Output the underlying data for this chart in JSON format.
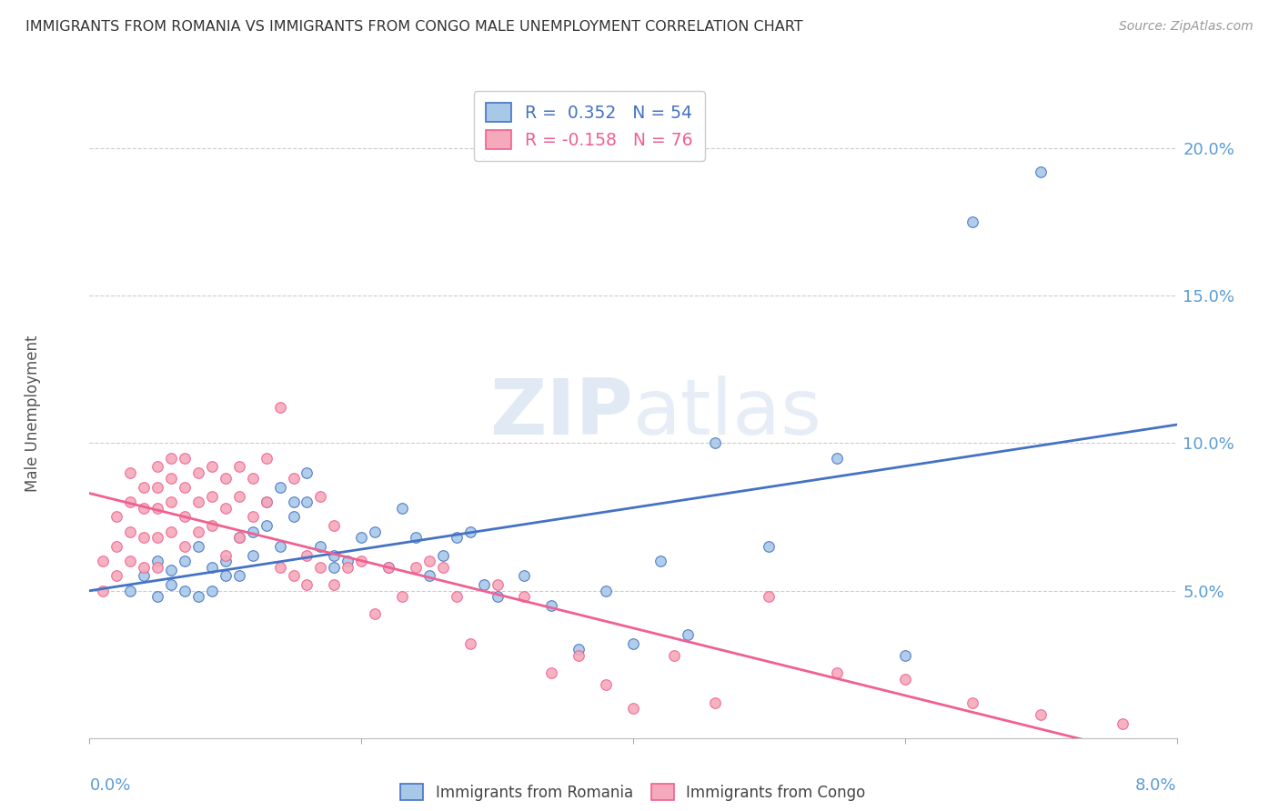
{
  "title": "IMMIGRANTS FROM ROMANIA VS IMMIGRANTS FROM CONGO MALE UNEMPLOYMENT CORRELATION CHART",
  "source": "Source: ZipAtlas.com",
  "ylabel": "Male Unemployment",
  "right_yticks": [
    "20.0%",
    "15.0%",
    "10.0%",
    "5.0%"
  ],
  "right_ytick_vals": [
    0.2,
    0.15,
    0.1,
    0.05
  ],
  "legend_romania": "R =  0.352   N = 54",
  "legend_congo": "R = -0.158   N = 76",
  "legend_label_romania": "Immigrants from Romania",
  "legend_label_congo": "Immigrants from Congo",
  "color_romania": "#A8C8E8",
  "color_congo": "#F4AABB",
  "color_romania_line": "#4472C4",
  "color_congo_line": "#F06090",
  "xlim": [
    0.0,
    0.08
  ],
  "ylim": [
    0.0,
    0.22
  ],
  "romania_scatter_x": [
    0.003,
    0.004,
    0.005,
    0.005,
    0.006,
    0.006,
    0.007,
    0.007,
    0.008,
    0.008,
    0.009,
    0.009,
    0.01,
    0.01,
    0.011,
    0.011,
    0.012,
    0.012,
    0.013,
    0.013,
    0.014,
    0.014,
    0.015,
    0.015,
    0.016,
    0.016,
    0.017,
    0.018,
    0.018,
    0.019,
    0.02,
    0.021,
    0.022,
    0.023,
    0.024,
    0.025,
    0.026,
    0.027,
    0.028,
    0.029,
    0.03,
    0.032,
    0.034,
    0.036,
    0.038,
    0.04,
    0.042,
    0.044,
    0.046,
    0.05,
    0.055,
    0.06,
    0.065,
    0.07
  ],
  "romania_scatter_y": [
    0.05,
    0.055,
    0.06,
    0.048,
    0.057,
    0.052,
    0.06,
    0.05,
    0.065,
    0.048,
    0.058,
    0.05,
    0.055,
    0.06,
    0.068,
    0.055,
    0.07,
    0.062,
    0.08,
    0.072,
    0.085,
    0.065,
    0.08,
    0.075,
    0.09,
    0.08,
    0.065,
    0.062,
    0.058,
    0.06,
    0.068,
    0.07,
    0.058,
    0.078,
    0.068,
    0.055,
    0.062,
    0.068,
    0.07,
    0.052,
    0.048,
    0.055,
    0.045,
    0.03,
    0.05,
    0.032,
    0.06,
    0.035,
    0.1,
    0.065,
    0.095,
    0.028,
    0.175,
    0.192
  ],
  "congo_scatter_x": [
    0.001,
    0.001,
    0.002,
    0.002,
    0.002,
    0.003,
    0.003,
    0.003,
    0.003,
    0.004,
    0.004,
    0.004,
    0.004,
    0.005,
    0.005,
    0.005,
    0.005,
    0.005,
    0.006,
    0.006,
    0.006,
    0.006,
    0.007,
    0.007,
    0.007,
    0.007,
    0.008,
    0.008,
    0.008,
    0.009,
    0.009,
    0.009,
    0.01,
    0.01,
    0.01,
    0.011,
    0.011,
    0.011,
    0.012,
    0.012,
    0.013,
    0.013,
    0.014,
    0.014,
    0.015,
    0.015,
    0.016,
    0.016,
    0.017,
    0.017,
    0.018,
    0.018,
    0.019,
    0.02,
    0.021,
    0.022,
    0.023,
    0.024,
    0.025,
    0.026,
    0.027,
    0.028,
    0.03,
    0.032,
    0.034,
    0.036,
    0.038,
    0.04,
    0.043,
    0.046,
    0.05,
    0.055,
    0.06,
    0.065,
    0.07,
    0.076
  ],
  "congo_scatter_y": [
    0.06,
    0.05,
    0.075,
    0.065,
    0.055,
    0.09,
    0.08,
    0.07,
    0.06,
    0.085,
    0.078,
    0.068,
    0.058,
    0.092,
    0.085,
    0.078,
    0.068,
    0.058,
    0.095,
    0.088,
    0.08,
    0.07,
    0.095,
    0.085,
    0.075,
    0.065,
    0.09,
    0.08,
    0.07,
    0.092,
    0.082,
    0.072,
    0.088,
    0.078,
    0.062,
    0.092,
    0.082,
    0.068,
    0.088,
    0.075,
    0.095,
    0.08,
    0.112,
    0.058,
    0.088,
    0.055,
    0.062,
    0.052,
    0.082,
    0.058,
    0.072,
    0.052,
    0.058,
    0.06,
    0.042,
    0.058,
    0.048,
    0.058,
    0.06,
    0.058,
    0.048,
    0.032,
    0.052,
    0.048,
    0.022,
    0.028,
    0.018,
    0.01,
    0.028,
    0.012,
    0.048,
    0.022,
    0.02,
    0.012,
    0.008,
    0.005
  ]
}
